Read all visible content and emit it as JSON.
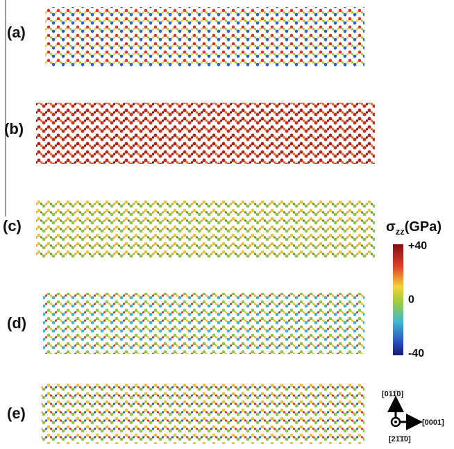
{
  "panels": [
    {
      "label": "(a)"
    },
    {
      "label": "(b)"
    },
    {
      "label": "(c)"
    },
    {
      "label": "(d)"
    },
    {
      "label": "(e)"
    }
  ],
  "colorbar": {
    "symbol": "σ",
    "subscript": "zz",
    "unit": "(GPa)",
    "ticks": [
      {
        "value": 40,
        "label": "+40"
      },
      {
        "value": 0,
        "label": "0"
      },
      {
        "value": -40,
        "label": "-40"
      }
    ]
  },
  "axes": {
    "up": "[011̄0]",
    "right": "[0001]",
    "out": "[21̄1̄0]"
  }
}
